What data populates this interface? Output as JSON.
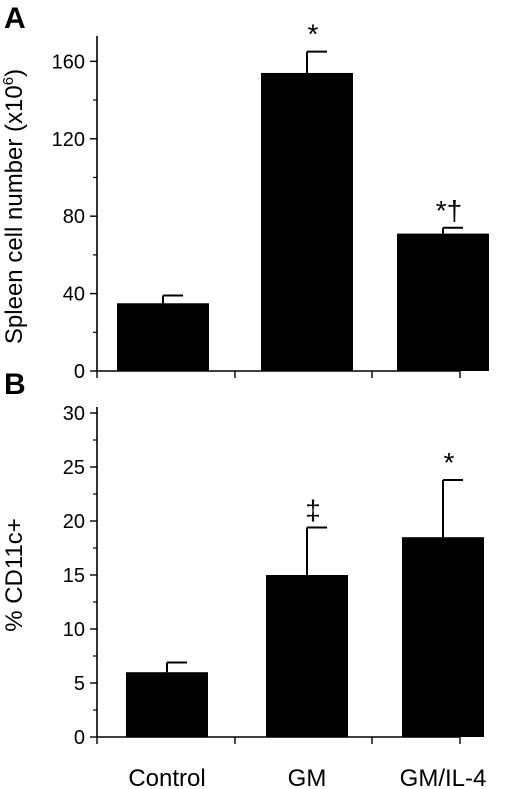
{
  "chart_data": [
    {
      "type": "bar",
      "panel_label": "A",
      "title": "",
      "xlabel": "",
      "ylabel": "Spleen cell number (x10",
      "ylabel_sup": "6",
      "ylabel_close": ")",
      "categories": [
        "Control",
        "GM",
        "GM/IL-4"
      ],
      "values": [
        35,
        154,
        71
      ],
      "errors": [
        4,
        11,
        3
      ],
      "annotations": [
        "",
        "*",
        "*†"
      ],
      "ylim": [
        0,
        170
      ],
      "yticks": [
        0,
        40,
        80,
        120,
        160
      ],
      "ytick_labels": [
        "0",
        "40",
        "80",
        "120",
        "160"
      ],
      "grid": false,
      "bar_color": "#000000"
    },
    {
      "type": "bar",
      "panel_label": "B",
      "title": "",
      "xlabel": "",
      "ylabel": "% CD11c+",
      "categories": [
        "Control",
        "GM",
        "GM/IL-4"
      ],
      "values": [
        6,
        15,
        18.5
      ],
      "errors": [
        0.9,
        4.4,
        5.3
      ],
      "annotations": [
        "",
        "‡",
        "*"
      ],
      "ylim": [
        0,
        30
      ],
      "yticks": [
        0,
        5,
        10,
        15,
        20,
        25,
        30
      ],
      "ytick_labels": [
        "0",
        "5",
        "10",
        "15",
        "20",
        "25",
        "30"
      ],
      "grid": false,
      "bar_color": "#000000"
    }
  ]
}
